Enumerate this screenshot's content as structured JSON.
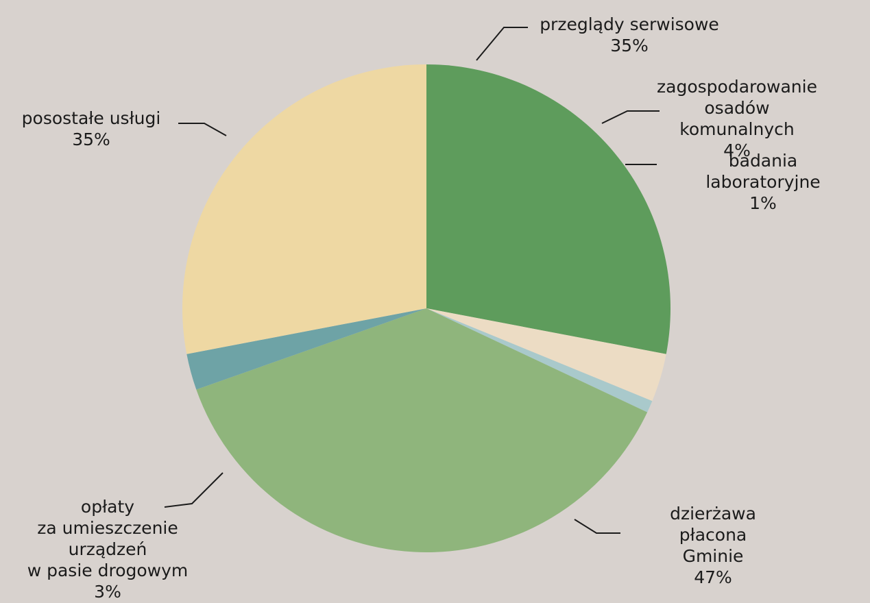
{
  "chart_data": {
    "type": "pie",
    "categories": [
      "przeglądy serwisowe",
      "zagospodarowanie osadów\nkomunalnych",
      "badania laboratoryjne",
      "dzierżawa płacona\nGminie",
      "opłaty\nza umieszczenie\nurządzeń\nw pasie drogowym",
      "posostałe usługi"
    ],
    "values": [
      35,
      4,
      1,
      47,
      3,
      35
    ],
    "value_labels": [
      "35%",
      "4%",
      "1%",
      "47%",
      "3%",
      "35%"
    ],
    "colors": [
      "#5e9c5c",
      "#ecdcc4",
      "#a9c9cb",
      "#8fb57c",
      "#6ea3a6",
      "#eed8a3"
    ]
  }
}
